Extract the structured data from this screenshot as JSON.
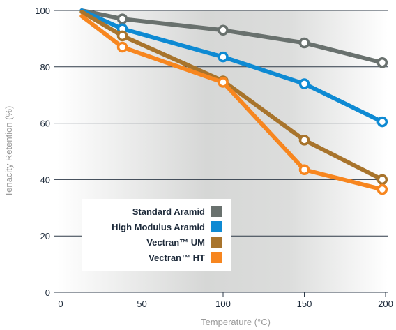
{
  "chart_data": {
    "type": "line",
    "xlabel": "Temperature (°C)",
    "ylabel": "Tenacity Retention (%)",
    "xlim": [
      0,
      200
    ],
    "ylim": [
      0,
      100
    ],
    "x_ticks": [
      0,
      50,
      100,
      150,
      200
    ],
    "y_ticks": [
      0,
      20,
      40,
      60,
      80,
      100
    ],
    "grid": "horizontal",
    "legend_position": "bottom-left",
    "series": [
      {
        "name": "Standard Aramid",
        "color": "#69716e",
        "x": [
          13,
          38,
          100,
          150,
          198
        ],
        "y": [
          100,
          97,
          93,
          88.5,
          81.5
        ]
      },
      {
        "name": "High Modulus Aramid",
        "color": "#0e8ad3",
        "x": [
          13,
          38,
          100,
          150,
          198
        ],
        "y": [
          100,
          93.5,
          83.5,
          74,
          60.5
        ]
      },
      {
        "name": "Vectran™ UM",
        "color": "#a8742c",
        "x": [
          13,
          38,
          100,
          150,
          198
        ],
        "y": [
          99.5,
          91,
          75,
          54,
          40
        ]
      },
      {
        "name": "Vectran™ HT",
        "color": "#f7861f",
        "x": [
          13,
          38,
          100,
          150,
          198
        ],
        "y": [
          98,
          87,
          74.5,
          43.5,
          36.5
        ]
      }
    ]
  }
}
